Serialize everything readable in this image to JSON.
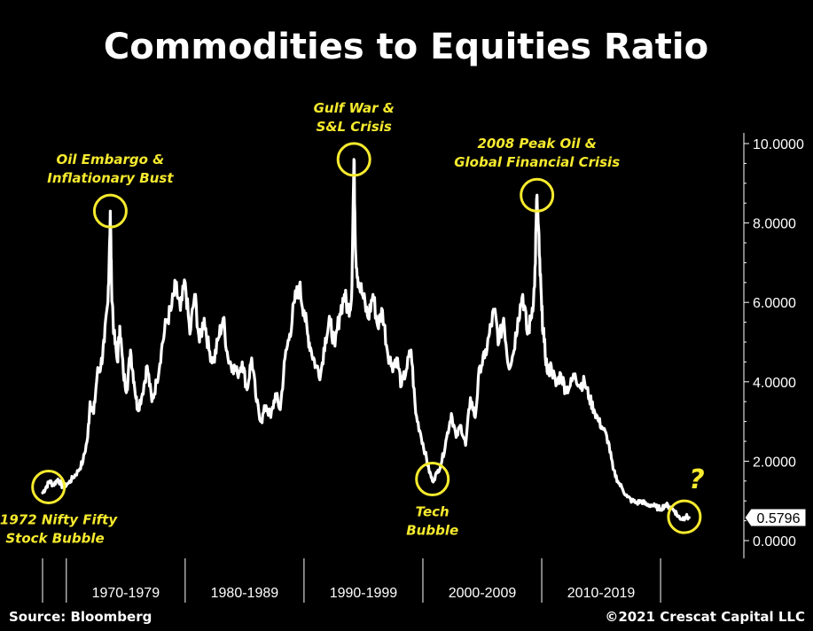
{
  "chart_data": {
    "type": "line",
    "title": "Commodities to Equities Ratio",
    "y_axis": {
      "range": [
        0,
        10.6
      ],
      "ticks": [
        {
          "value": 10,
          "label": "10.0000"
        },
        {
          "value": 8,
          "label": "8.0000"
        },
        {
          "value": 6,
          "label": "6.0000"
        },
        {
          "value": 4,
          "label": "4.0000"
        },
        {
          "value": 2,
          "label": "2.0000"
        },
        {
          "value": 0,
          "label": "0.0000"
        }
      ],
      "side": "right"
    },
    "x_axis": {
      "range": [
        1968.0,
        2023.5
      ],
      "groups": [
        {
          "label": "1970-1979",
          "start": 1970,
          "end": 1980
        },
        {
          "label": "1980-1989",
          "start": 1980,
          "end": 1990
        },
        {
          "label": "1990-1999",
          "start": 1990,
          "end": 2000
        },
        {
          "label": "2000-2009",
          "start": 2000,
          "end": 2010
        },
        {
          "label": "2010-2019",
          "start": 2010,
          "end": 2020
        }
      ]
    },
    "grid": false,
    "series": [
      {
        "color": "#ffffff",
        "points": [
          [
            1968.0,
            1.2
          ],
          [
            1968.3,
            1.35
          ],
          [
            1968.6,
            1.5
          ],
          [
            1968.9,
            1.4
          ],
          [
            1969.3,
            1.55
          ],
          [
            1969.7,
            1.35
          ],
          [
            1970.2,
            1.45
          ],
          [
            1970.6,
            1.6
          ],
          [
            1971.0,
            1.75
          ],
          [
            1971.4,
            2.0
          ],
          [
            1971.8,
            2.6
          ],
          [
            1972.0,
            3.5
          ],
          [
            1972.3,
            3.2
          ],
          [
            1972.6,
            4.2
          ],
          [
            1972.9,
            4.4
          ],
          [
            1973.2,
            5.0
          ],
          [
            1973.5,
            6.0
          ],
          [
            1973.7,
            8.3
          ],
          [
            1973.8,
            6.5
          ],
          [
            1974.0,
            5.2
          ],
          [
            1974.3,
            4.5
          ],
          [
            1974.5,
            5.4
          ],
          [
            1974.8,
            4.2
          ],
          [
            1975.1,
            3.8
          ],
          [
            1975.4,
            4.8
          ],
          [
            1975.7,
            4.0
          ],
          [
            1976.0,
            3.3
          ],
          [
            1976.4,
            3.7
          ],
          [
            1976.8,
            4.4
          ],
          [
            1977.2,
            3.5
          ],
          [
            1977.6,
            4.0
          ],
          [
            1978.0,
            4.8
          ],
          [
            1978.4,
            5.5
          ],
          [
            1978.8,
            5.8
          ],
          [
            1979.2,
            6.4
          ],
          [
            1979.6,
            5.8
          ],
          [
            1980.0,
            6.5
          ],
          [
            1980.4,
            5.2
          ],
          [
            1980.8,
            6.2
          ],
          [
            1981.2,
            5.0
          ],
          [
            1981.6,
            5.6
          ],
          [
            1982.0,
            4.8
          ],
          [
            1982.4,
            4.5
          ],
          [
            1982.8,
            5.1
          ],
          [
            1983.2,
            5.6
          ],
          [
            1983.6,
            4.6
          ],
          [
            1984.0,
            4.4
          ],
          [
            1984.4,
            4.2
          ],
          [
            1984.8,
            4.5
          ],
          [
            1985.2,
            3.8
          ],
          [
            1985.6,
            4.6
          ],
          [
            1986.0,
            3.5
          ],
          [
            1986.4,
            3.0
          ],
          [
            1986.8,
            3.4
          ],
          [
            1987.2,
            3.1
          ],
          [
            1987.6,
            3.7
          ],
          [
            1988.0,
            3.3
          ],
          [
            1988.4,
            4.6
          ],
          [
            1988.8,
            5.2
          ],
          [
            1989.2,
            6.0
          ],
          [
            1989.6,
            6.4
          ],
          [
            1990.0,
            5.8
          ],
          [
            1990.3,
            5.2
          ],
          [
            1990.6,
            4.8
          ],
          [
            1991.0,
            4.4
          ],
          [
            1991.4,
            4.2
          ],
          [
            1991.8,
            5.1
          ],
          [
            1992.2,
            5.5
          ],
          [
            1992.6,
            4.9
          ],
          [
            1993.0,
            5.7
          ],
          [
            1993.4,
            6.2
          ],
          [
            1993.7,
            5.8
          ],
          [
            1994.0,
            6.1
          ],
          [
            1994.2,
            9.6
          ],
          [
            1994.35,
            7.2
          ],
          [
            1994.6,
            6.5
          ],
          [
            1995.0,
            6.1
          ],
          [
            1995.4,
            5.6
          ],
          [
            1995.8,
            6.2
          ],
          [
            1996.2,
            5.4
          ],
          [
            1996.6,
            5.8
          ],
          [
            1997.0,
            4.8
          ],
          [
            1997.4,
            4.4
          ],
          [
            1997.8,
            4.6
          ],
          [
            1998.2,
            3.9
          ],
          [
            1998.6,
            4.3
          ],
          [
            1999.0,
            4.8
          ],
          [
            1999.4,
            3.2
          ],
          [
            1999.8,
            2.7
          ],
          [
            2000.2,
            2.2
          ],
          [
            2000.5,
            1.8
          ],
          [
            2000.8,
            1.5
          ],
          [
            2001.2,
            1.7
          ],
          [
            2001.6,
            2.0
          ],
          [
            2002.0,
            2.6
          ],
          [
            2002.4,
            3.2
          ],
          [
            2002.8,
            2.6
          ],
          [
            2003.2,
            2.9
          ],
          [
            2003.6,
            2.4
          ],
          [
            2004.0,
            3.6
          ],
          [
            2004.4,
            3.1
          ],
          [
            2004.8,
            4.4
          ],
          [
            2005.2,
            4.6
          ],
          [
            2005.6,
            5.2
          ],
          [
            2006.0,
            5.8
          ],
          [
            2006.4,
            5.0
          ],
          [
            2006.8,
            5.6
          ],
          [
            2007.2,
            4.4
          ],
          [
            2007.6,
            4.7
          ],
          [
            2008.0,
            5.6
          ],
          [
            2008.4,
            6.2
          ],
          [
            2008.8,
            5.2
          ],
          [
            2009.1,
            5.6
          ],
          [
            2009.4,
            6.4
          ],
          [
            2009.6,
            8.7
          ],
          [
            2009.8,
            7.2
          ],
          [
            2010.0,
            5.8
          ],
          [
            2010.2,
            5.0
          ],
          [
            2010.5,
            4.2
          ],
          [
            2010.8,
            4.4
          ],
          [
            2011.2,
            3.9
          ],
          [
            2011.6,
            4.2
          ],
          [
            2012.0,
            3.8
          ],
          [
            2012.4,
            3.9
          ],
          [
            2012.8,
            4.2
          ],
          [
            2013.2,
            3.9
          ],
          [
            2013.6,
            4.0
          ],
          [
            2014.0,
            3.6
          ],
          [
            2014.4,
            3.3
          ],
          [
            2014.8,
            3.0
          ],
          [
            2015.2,
            2.8
          ],
          [
            2015.6,
            2.5
          ],
          [
            2016.0,
            1.8
          ],
          [
            2016.4,
            1.5
          ],
          [
            2016.8,
            1.3
          ],
          [
            2017.2,
            1.1
          ],
          [
            2017.6,
            1.0
          ],
          [
            2018.0,
            0.95
          ],
          [
            2018.4,
            1.0
          ],
          [
            2018.8,
            0.9
          ],
          [
            2019.2,
            0.9
          ],
          [
            2019.6,
            0.85
          ],
          [
            2020.0,
            0.8
          ],
          [
            2020.4,
            0.9
          ],
          [
            2020.8,
            0.85
          ],
          [
            2021.2,
            0.75
          ],
          [
            2021.5,
            0.6
          ],
          [
            2021.8,
            0.55
          ],
          [
            2022.1,
            0.6
          ],
          [
            2022.4,
            0.58
          ]
        ]
      }
    ],
    "current_value": {
      "value": 0.5796,
      "label": "0.5796"
    },
    "annotations": [
      {
        "lines": [
          "1972 Nifty Fifty",
          "Stock Bubble"
        ],
        "x": 1968.5,
        "y": 1.35,
        "label_position": "below"
      },
      {
        "lines": [
          "Oil Embargo &",
          "Inflationary Bust"
        ],
        "x": 1973.7,
        "y": 8.3,
        "label_position": "above"
      },
      {
        "lines": [
          "Gulf War &",
          "S&L Crisis"
        ],
        "x": 1994.2,
        "y": 9.6,
        "label_position": "above"
      },
      {
        "lines": [
          "Tech",
          "Bubble"
        ],
        "x": 2000.8,
        "y": 1.55,
        "label_position": "below"
      },
      {
        "lines": [
          "2008 Peak Oil &",
          "Global Financial Crisis"
        ],
        "x": 2009.6,
        "y": 8.7,
        "label_position": "above"
      },
      {
        "lines": [],
        "x": 2022.0,
        "y": 0.6,
        "label_position": "none",
        "mark": "?"
      }
    ],
    "annotation_color": "#f6ea2e"
  },
  "footer": {
    "source": "Source: Bloomberg",
    "copyright": "©2021 Crescat Capital LLC"
  }
}
